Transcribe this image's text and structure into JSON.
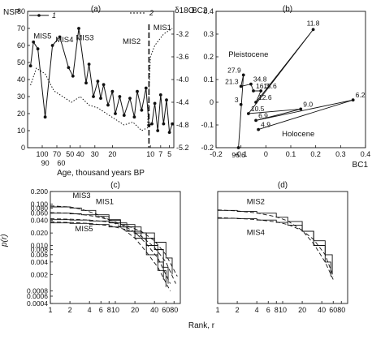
{
  "chart_data": [
    {
      "panel": "(a)",
      "type": "line",
      "ylabel_left": "NSP",
      "ylabel_right": "δ18O",
      "xlabel": "Age, thousand years BP",
      "ylim_left": [
        0,
        80
      ],
      "ylim_right": [
        -5.2,
        -2.8
      ],
      "yticks_left": [
        "0",
        "10",
        "20",
        "30",
        "40",
        "50",
        "60",
        "70",
        "80"
      ],
      "yticks_right": [
        "-3.2",
        "-3.6",
        "-4.0",
        "-4.4",
        "-4.8",
        "-5.2"
      ],
      "xticks_row1": [
        "100",
        "70",
        "50",
        "40",
        "30",
        "20",
        "10",
        "7",
        "5"
      ],
      "xticks_row2": [
        "90",
        "60"
      ],
      "xticks_row1_pos": [
        0.1,
        0.2,
        0.29,
        0.36,
        0.46,
        0.58,
        0.84,
        0.91,
        0.97
      ],
      "xticks_row2_pos": [
        0.12,
        0.23
      ],
      "legend": [
        {
          "marker": "1",
          "style": "solid-with-points"
        },
        {
          "marker": "2",
          "style": "dotted"
        }
      ],
      "annotations": [
        {
          "text": "MIS5",
          "x": 0.04,
          "y": 64
        },
        {
          "text": "MIS4",
          "x": 0.19,
          "y": 62
        },
        {
          "text": "MIS3",
          "x": 0.33,
          "y": 63
        },
        {
          "text": "MIS2",
          "x": 0.65,
          "y": 61
        },
        {
          "text": "MIS1",
          "x": 0.86,
          "y": 69
        }
      ],
      "divider_x": 0.83,
      "series": [
        {
          "marker": "1",
          "x": [
            0.02,
            0.04,
            0.07,
            0.12,
            0.17,
            0.22,
            0.28,
            0.31,
            0.35,
            0.4,
            0.42,
            0.45,
            0.48,
            0.5,
            0.52,
            0.55,
            0.58,
            0.6,
            0.63,
            0.66,
            0.7,
            0.73,
            0.75,
            0.78,
            0.81,
            0.83,
            0.85,
            0.87,
            0.89,
            0.91,
            0.93,
            0.95,
            0.97,
            0.99
          ],
          "values": [
            48,
            62,
            58,
            18,
            60,
            65,
            47,
            42,
            70,
            38,
            49,
            30,
            39,
            29,
            37,
            25,
            33,
            20,
            30,
            19,
            29,
            18,
            33,
            22,
            35,
            13,
            14,
            26,
            10,
            31,
            14,
            28,
            9,
            14
          ]
        },
        {
          "marker": "2",
          "x": [
            0.02,
            0.06,
            0.12,
            0.18,
            0.24,
            0.3,
            0.36,
            0.42,
            0.48,
            0.54,
            0.6,
            0.66,
            0.72,
            0.78,
            0.82,
            0.84,
            0.87,
            0.9,
            0.93,
            0.96,
            0.99
          ],
          "values": [
            -4.1,
            -3.8,
            -3.9,
            -4.2,
            -4.3,
            -4.4,
            -4.3,
            -4.45,
            -4.5,
            -4.6,
            -4.7,
            -4.8,
            -4.75,
            -4.9,
            -4.85,
            -3.6,
            -3.4,
            -3.3,
            -3.2,
            -3.15,
            -3.1
          ]
        }
      ]
    },
    {
      "panel": "(b)",
      "type": "scatter",
      "xlabel": "BC1",
      "ylabel": "BC2",
      "xlim": [
        -0.2,
        0.4
      ],
      "ylim": [
        -0.2,
        0.4
      ],
      "xticks": [
        "-0.2",
        "-0.1",
        "0",
        "0.1",
        "0.2",
        "0.3",
        "0.4"
      ],
      "yticks": [
        "-0.2",
        "-0.1",
        "0",
        "0.1",
        "0.2",
        "0.3",
        "0.4"
      ],
      "group_labels": [
        {
          "text": "Pleistocene",
          "x": -0.07,
          "y": 0.2
        },
        {
          "text": "Holocene",
          "x": 0.13,
          "y": -0.15
        }
      ],
      "points": [
        {
          "label": "96.6",
          "x": -0.11,
          "y": -0.2
        },
        {
          "label": "27.9",
          "x": -0.09,
          "y": 0.12
        },
        {
          "label": "21.3",
          "x": -0.1,
          "y": 0.07
        },
        {
          "label": "34.8",
          "x": -0.06,
          "y": 0.08
        },
        {
          "label": "16.3",
          "x": -0.05,
          "y": 0.05
        },
        {
          "label": "13.6",
          "x": -0.02,
          "y": 0.05
        },
        {
          "label": "12.6",
          "x": -0.04,
          "y": 0.0
        },
        {
          "label": "11.8",
          "x": 0.19,
          "y": 0.32
        },
        {
          "label": "10.5",
          "x": -0.07,
          "y": -0.05
        },
        {
          "label": "9.0",
          "x": 0.14,
          "y": -0.03
        },
        {
          "label": "6.9",
          "x": -0.04,
          "y": -0.08
        },
        {
          "label": "6.2",
          "x": 0.35,
          "y": 0.01
        },
        {
          "label": "4.9",
          "x": -0.03,
          "y": -0.12
        },
        {
          "label": "3",
          "x": -0.1,
          "y": -0.01
        }
      ],
      "path_order": [
        "96.6",
        "27.9",
        "21.3",
        "34.8",
        "16.3",
        "13.6",
        "12.6",
        "11.8",
        "10.5",
        "9.0",
        "6.9",
        "6.2",
        "4.9"
      ]
    },
    {
      "panel": "(c)",
      "type": "line",
      "xlabel": "",
      "ylabel": "p(r)",
      "xscale": "log",
      "yscale": "log",
      "xlim": [
        1,
        100
      ],
      "ylim": [
        0.0004,
        0.2
      ],
      "xticks": [
        "1",
        "2",
        "4",
        "6",
        "8",
        "10",
        "20",
        "40",
        "60",
        "80"
      ],
      "xtick_values": [
        1,
        2,
        4,
        6,
        8,
        10,
        20,
        40,
        60,
        80
      ],
      "yticks": [
        "0.200",
        "0.100",
        "0.080",
        "0.060",
        "0.040",
        "0.020",
        "0.010",
        "0.008",
        "0.006",
        "0.004",
        "0.002",
        "0.0008",
        "0.0006",
        "0.0004"
      ],
      "ytick_values": [
        0.2,
        0.1,
        0.08,
        0.06,
        0.04,
        0.02,
        0.01,
        0.008,
        0.006,
        0.004,
        0.002,
        0.0008,
        0.0006,
        0.0004
      ],
      "curve_labels": [
        {
          "text": "MIS3",
          "x": 2.2,
          "y": 0.14
        },
        {
          "text": "MIS1",
          "x": 5,
          "y": 0.1
        },
        {
          "text": "MIS5",
          "x": 2.4,
          "y": 0.022
        }
      ],
      "series": [
        {
          "name": "MIS3",
          "style": "solid-step",
          "x": [
            1,
            2,
            3,
            5,
            8,
            12,
            20,
            30,
            45,
            60
          ],
          "values": [
            0.085,
            0.08,
            0.07,
            0.055,
            0.04,
            0.028,
            0.015,
            0.006,
            0.0025,
            0.001
          ]
        },
        {
          "name": "MIS3",
          "style": "dashed-fit",
          "x": [
            1,
            2,
            3,
            5,
            8,
            12,
            20,
            30,
            45,
            70
          ],
          "values": [
            0.09,
            0.085,
            0.075,
            0.058,
            0.042,
            0.028,
            0.015,
            0.007,
            0.003,
            0.0008
          ]
        },
        {
          "name": "MIS1",
          "style": "solid-step",
          "x": [
            1,
            2,
            3,
            5,
            8,
            12,
            20,
            30,
            45,
            55
          ],
          "values": [
            0.06,
            0.058,
            0.055,
            0.05,
            0.042,
            0.032,
            0.02,
            0.01,
            0.004,
            0.0015
          ]
        },
        {
          "name": "MIS1",
          "style": "dashed-fit",
          "x": [
            1,
            2,
            3,
            5,
            8,
            12,
            20,
            30,
            45,
            70
          ],
          "values": [
            0.062,
            0.06,
            0.056,
            0.05,
            0.042,
            0.033,
            0.021,
            0.011,
            0.005,
            0.0012
          ]
        },
        {
          "name": "MIS5",
          "style": "solid-step",
          "x": [
            1,
            2,
            4,
            8,
            15,
            25,
            40,
            55,
            65
          ],
          "values": [
            0.035,
            0.034,
            0.032,
            0.028,
            0.022,
            0.015,
            0.008,
            0.003,
            0.0012
          ]
        },
        {
          "name": "MIS5",
          "style": "dashed-fit",
          "x": [
            1,
            2,
            4,
            8,
            15,
            25,
            40,
            60,
            85
          ],
          "values": [
            0.037,
            0.036,
            0.034,
            0.03,
            0.024,
            0.017,
            0.009,
            0.004,
            0.0012
          ]
        },
        {
          "name": "",
          "style": "solid-step",
          "x": [
            1,
            2,
            4,
            8,
            15,
            25,
            40,
            60,
            75
          ],
          "values": [
            0.042,
            0.041,
            0.039,
            0.035,
            0.028,
            0.02,
            0.012,
            0.005,
            0.002
          ]
        },
        {
          "name": "",
          "style": "dashed-fit",
          "x": [
            1,
            2,
            4,
            8,
            15,
            25,
            40,
            60,
            90
          ],
          "values": [
            0.044,
            0.043,
            0.041,
            0.037,
            0.03,
            0.022,
            0.013,
            0.006,
            0.0018
          ]
        }
      ]
    },
    {
      "panel": "(d)",
      "type": "line",
      "xlabel": "Rank, r",
      "xscale": "log",
      "yscale": "log",
      "xlim": [
        1,
        100
      ],
      "ylim": [
        0.0004,
        0.2
      ],
      "xticks": [
        "1",
        "2",
        "4",
        "6",
        "8",
        "10",
        "20",
        "40",
        "60",
        "80"
      ],
      "xtick_values": [
        1,
        2,
        4,
        6,
        8,
        10,
        20,
        40,
        60,
        80
      ],
      "curve_labels": [
        {
          "text": "MIS2",
          "x": 2.8,
          "y": 0.1
        },
        {
          "text": "MIS4",
          "x": 2.8,
          "y": 0.018
        }
      ],
      "series": [
        {
          "name": "MIS2",
          "style": "solid-step",
          "x": [
            1,
            2,
            4,
            8,
            12,
            20,
            30,
            45,
            55
          ],
          "values": [
            0.07,
            0.066,
            0.06,
            0.048,
            0.038,
            0.022,
            0.01,
            0.004,
            0.0018
          ]
        },
        {
          "name": "MIS2",
          "style": "dashed-fit",
          "x": [
            1,
            2,
            4,
            8,
            12,
            20,
            30,
            45,
            60
          ],
          "values": [
            0.072,
            0.068,
            0.061,
            0.049,
            0.039,
            0.023,
            0.011,
            0.004,
            0.0015
          ]
        },
        {
          "name": "MIS4",
          "style": "solid-step",
          "x": [
            1,
            2,
            4,
            8,
            12,
            20,
            30,
            45,
            58
          ],
          "values": [
            0.045,
            0.044,
            0.041,
            0.036,
            0.031,
            0.022,
            0.013,
            0.006,
            0.002
          ]
        },
        {
          "name": "MIS4",
          "style": "dashed-fit",
          "x": [
            1,
            2,
            4,
            8,
            12,
            20,
            30,
            45,
            60
          ],
          "values": [
            0.047,
            0.045,
            0.042,
            0.037,
            0.032,
            0.023,
            0.014,
            0.006,
            0.0018
          ]
        }
      ]
    }
  ]
}
